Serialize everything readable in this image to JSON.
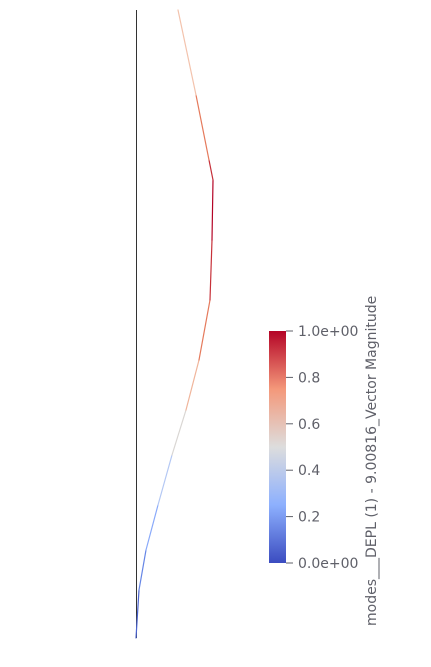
{
  "scalar_bar": {
    "title": "modes___DEPL (1) - 9.00816_Vector Magnitude",
    "ticks": [
      {
        "value": 1.0,
        "label": "1.0e+00"
      },
      {
        "value": 0.8,
        "label": "0.8"
      },
      {
        "value": 0.6,
        "label": "0.6"
      },
      {
        "value": 0.4,
        "label": "0.4"
      },
      {
        "value": 0.2,
        "label": "0.2"
      },
      {
        "value": 0.0,
        "label": "0.0e+00"
      }
    ],
    "range": [
      0.0,
      1.0
    ],
    "colormap": [
      "#3b4cc0",
      "#8db0fe",
      "#dddddd",
      "#f4987a",
      "#b40426"
    ]
  },
  "colors": {
    "axis_line": "#333333",
    "text": "#5f6069",
    "background": "#ffffff"
  }
}
